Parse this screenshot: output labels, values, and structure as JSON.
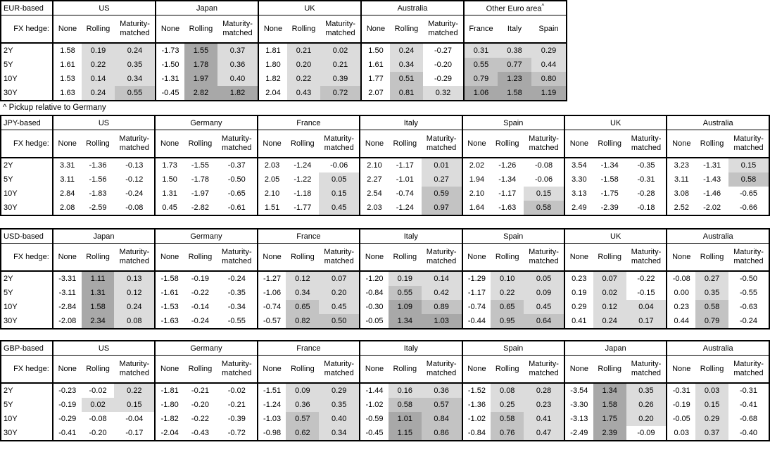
{
  "note": "^ Pickup relative to Germany",
  "fx_hedge_label": "FX hedge:",
  "tenors": [
    "2Y",
    "5Y",
    "10Y",
    "30Y"
  ],
  "hedge_columns": [
    "None",
    "Rolling",
    "Maturity-matched"
  ],
  "shade_colors": {
    "light": "#dcdcdc",
    "medium": "#c3c3c3",
    "dark": "#a8a8a8"
  },
  "shade_rule": "hedged columns only: 0<v<0.5 light, 0.5<=v<=1.0 medium, v>1.0 dark",
  "tables": [
    {
      "base_label": "EUR-based",
      "groups": [
        {
          "name": "US",
          "cols": [
            "None",
            "Rolling",
            "Maturity-matched"
          ],
          "shaded": [
            false,
            true,
            true
          ],
          "rows": [
            [
              "1.58",
              "0.19",
              "0.24"
            ],
            [
              "1.61",
              "0.22",
              "0.35"
            ],
            [
              "1.53",
              "0.14",
              "0.34"
            ],
            [
              "1.63",
              "0.24",
              "0.55"
            ]
          ]
        },
        {
          "name": "Japan",
          "cols": [
            "None",
            "Rolling",
            "Maturity-matched"
          ],
          "shaded": [
            false,
            true,
            true
          ],
          "rows": [
            [
              "-1.73",
              "1.55",
              "0.37"
            ],
            [
              "-1.50",
              "1.78",
              "0.36"
            ],
            [
              "-1.31",
              "1.97",
              "0.40"
            ],
            [
              "-0.45",
              "2.82",
              "1.82"
            ]
          ]
        },
        {
          "name": "UK",
          "cols": [
            "None",
            "Rolling",
            "Maturity-matched"
          ],
          "shaded": [
            false,
            true,
            true
          ],
          "rows": [
            [
              "1.81",
              "0.21",
              "0.02"
            ],
            [
              "1.80",
              "0.20",
              "0.21"
            ],
            [
              "1.82",
              "0.22",
              "0.39"
            ],
            [
              "2.04",
              "0.43",
              "0.72"
            ]
          ]
        },
        {
          "name": "Australia",
          "cols": [
            "None",
            "Rolling",
            "Maturity-matched"
          ],
          "shaded": [
            false,
            true,
            true
          ],
          "rows": [
            [
              "1.50",
              "0.24",
              "-0.27"
            ],
            [
              "1.61",
              "0.34",
              "-0.20"
            ],
            [
              "1.77",
              "0.51",
              "-0.29"
            ],
            [
              "2.07",
              "0.81",
              "0.32"
            ]
          ]
        },
        {
          "name": "Other Euro area",
          "sup": "^",
          "equal_cols": true,
          "cols": [
            "France",
            "Italy",
            "Spain"
          ],
          "shaded": [
            true,
            true,
            true
          ],
          "rows": [
            [
              "0.31",
              "0.38",
              "0.29"
            ],
            [
              "0.55",
              "0.77",
              "0.44"
            ],
            [
              "0.79",
              "1.23",
              "0.80"
            ],
            [
              "1.06",
              "1.58",
              "1.19"
            ]
          ]
        }
      ]
    },
    {
      "base_label": "JPY-based",
      "groups": [
        {
          "name": "US",
          "cols": [
            "None",
            "Rolling",
            "Maturity-matched"
          ],
          "shaded": [
            false,
            true,
            true
          ],
          "rows": [
            [
              "3.31",
              "-1.36",
              "-0.13"
            ],
            [
              "3.11",
              "-1.56",
              "-0.12"
            ],
            [
              "2.84",
              "-1.83",
              "-0.24"
            ],
            [
              "2.08",
              "-2.59",
              "-0.08"
            ]
          ]
        },
        {
          "name": "Germany",
          "cols": [
            "None",
            "Rolling",
            "Maturity-matched"
          ],
          "shaded": [
            false,
            true,
            true
          ],
          "rows": [
            [
              "1.73",
              "-1.55",
              "-0.37"
            ],
            [
              "1.50",
              "-1.78",
              "-0.50"
            ],
            [
              "1.31",
              "-1.97",
              "-0.65"
            ],
            [
              "0.45",
              "-2.82",
              "-0.61"
            ]
          ]
        },
        {
          "name": "France",
          "cols": [
            "None",
            "Rolling",
            "Maturity-matched"
          ],
          "shaded": [
            false,
            true,
            true
          ],
          "rows": [
            [
              "2.03",
              "-1.24",
              "-0.06"
            ],
            [
              "2.05",
              "-1.22",
              "0.05"
            ],
            [
              "2.10",
              "-1.18",
              "0.15"
            ],
            [
              "1.51",
              "-1.77",
              "0.45"
            ]
          ]
        },
        {
          "name": "Italy",
          "cols": [
            "None",
            "Rolling",
            "Maturity-matched"
          ],
          "shaded": [
            false,
            true,
            true
          ],
          "rows": [
            [
              "2.10",
              "-1.17",
              "0.01"
            ],
            [
              "2.27",
              "-1.01",
              "0.27"
            ],
            [
              "2.54",
              "-0.74",
              "0.59"
            ],
            [
              "2.03",
              "-1.24",
              "0.97"
            ]
          ]
        },
        {
          "name": "Spain",
          "cols": [
            "None",
            "Rolling",
            "Maturity-matched"
          ],
          "shaded": [
            false,
            true,
            true
          ],
          "rows": [
            [
              "2.02",
              "-1.26",
              "-0.08"
            ],
            [
              "1.94",
              "-1.34",
              "-0.06"
            ],
            [
              "2.10",
              "-1.17",
              "0.15"
            ],
            [
              "1.64",
              "-1.63",
              "0.58"
            ]
          ]
        },
        {
          "name": "UK",
          "cols": [
            "None",
            "Rolling",
            "Maturity-matched"
          ],
          "shaded": [
            false,
            true,
            true
          ],
          "rows": [
            [
              "3.54",
              "-1.34",
              "-0.35"
            ],
            [
              "3.30",
              "-1.58",
              "-0.31"
            ],
            [
              "3.13",
              "-1.75",
              "-0.28"
            ],
            [
              "2.49",
              "-2.39",
              "-0.18"
            ]
          ]
        },
        {
          "name": "Australia",
          "cols": [
            "None",
            "Rolling",
            "Maturity-matched"
          ],
          "shaded": [
            false,
            true,
            true
          ],
          "rows": [
            [
              "3.23",
              "-1.31",
              "0.15"
            ],
            [
              "3.11",
              "-1.43",
              "0.58"
            ],
            [
              "3.08",
              "-1.46",
              "-0.65"
            ],
            [
              "2.52",
              "-2.02",
              "-0.66"
            ]
          ]
        }
      ]
    },
    {
      "base_label": "USD-based",
      "groups": [
        {
          "name": "Japan",
          "cols": [
            "None",
            "Rolling",
            "Maturity-matched"
          ],
          "shaded": [
            false,
            true,
            true
          ],
          "rows": [
            [
              "-3.31",
              "1.11",
              "0.13"
            ],
            [
              "-3.11",
              "1.31",
              "0.12"
            ],
            [
              "-2.84",
              "1.58",
              "0.24"
            ],
            [
              "-2.08",
              "2.34",
              "0.08"
            ]
          ]
        },
        {
          "name": "Germany",
          "cols": [
            "None",
            "Rolling",
            "Maturity-matched"
          ],
          "shaded": [
            false,
            true,
            true
          ],
          "rows": [
            [
              "-1.58",
              "-0.19",
              "-0.24"
            ],
            [
              "-1.61",
              "-0.22",
              "-0.35"
            ],
            [
              "-1.53",
              "-0.14",
              "-0.34"
            ],
            [
              "-1.63",
              "-0.24",
              "-0.55"
            ]
          ]
        },
        {
          "name": "France",
          "cols": [
            "None",
            "Rolling",
            "Maturity-matched"
          ],
          "shaded": [
            false,
            true,
            true
          ],
          "rows": [
            [
              "-1.27",
              "0.12",
              "0.07"
            ],
            [
              "-1.06",
              "0.34",
              "0.20"
            ],
            [
              "-0.74",
              "0.65",
              "0.45"
            ],
            [
              "-0.57",
              "0.82",
              "0.50"
            ]
          ]
        },
        {
          "name": "Italy",
          "cols": [
            "None",
            "Rolling",
            "Maturity-matched"
          ],
          "shaded": [
            false,
            true,
            true
          ],
          "rows": [
            [
              "-1.20",
              "0.19",
              "0.14"
            ],
            [
              "-0.84",
              "0.55",
              "0.42"
            ],
            [
              "-0.30",
              "1.09",
              "0.89"
            ],
            [
              "-0.05",
              "1.34",
              "1.03"
            ]
          ]
        },
        {
          "name": "Spain",
          "cols": [
            "None",
            "Rolling",
            "Maturity-matched"
          ],
          "shaded": [
            false,
            true,
            true
          ],
          "rows": [
            [
              "-1.29",
              "0.10",
              "0.05"
            ],
            [
              "-1.17",
              "0.22",
              "0.09"
            ],
            [
              "-0.74",
              "0.65",
              "0.45"
            ],
            [
              "-0.44",
              "0.95",
              "0.64"
            ]
          ]
        },
        {
          "name": "UK",
          "cols": [
            "None",
            "Rolling",
            "Maturity-matched"
          ],
          "shaded": [
            false,
            true,
            true
          ],
          "rows": [
            [
              "0.23",
              "0.07",
              "-0.22"
            ],
            [
              "0.19",
              "0.02",
              "-0.15"
            ],
            [
              "0.29",
              "0.12",
              "0.04"
            ],
            [
              "0.41",
              "0.24",
              "0.17"
            ]
          ]
        },
        {
          "name": "Australia",
          "cols": [
            "None",
            "Rolling",
            "Maturity-matched"
          ],
          "shaded": [
            false,
            true,
            true
          ],
          "rows": [
            [
              "-0.08",
              "0.27",
              "-0.50"
            ],
            [
              "0.00",
              "0.35",
              "-0.55"
            ],
            [
              "0.23",
              "0.58",
              "-0.63"
            ],
            [
              "0.44",
              "0.79",
              "-0.24"
            ]
          ]
        }
      ]
    },
    {
      "base_label": "GBP-based",
      "groups": [
        {
          "name": "US",
          "cols": [
            "None",
            "Rolling",
            "Maturity-matched"
          ],
          "shaded": [
            false,
            true,
            true
          ],
          "rows": [
            [
              "-0.23",
              "-0.02",
              "0.22"
            ],
            [
              "-0.19",
              "0.02",
              "0.15"
            ],
            [
              "-0.29",
              "-0.08",
              "-0.04"
            ],
            [
              "-0.41",
              "-0.20",
              "-0.17"
            ]
          ]
        },
        {
          "name": "Germany",
          "cols": [
            "None",
            "Rolling",
            "Maturity-matched"
          ],
          "shaded": [
            false,
            true,
            true
          ],
          "rows": [
            [
              "-1.81",
              "-0.21",
              "-0.02"
            ],
            [
              "-1.80",
              "-0.20",
              "-0.21"
            ],
            [
              "-1.82",
              "-0.22",
              "-0.39"
            ],
            [
              "-2.04",
              "-0.43",
              "-0.72"
            ]
          ]
        },
        {
          "name": "France",
          "cols": [
            "None",
            "Rolling",
            "Maturity-matched"
          ],
          "shaded": [
            false,
            true,
            true
          ],
          "rows": [
            [
              "-1.51",
              "0.09",
              "0.29"
            ],
            [
              "-1.24",
              "0.36",
              "0.35"
            ],
            [
              "-1.03",
              "0.57",
              "0.40"
            ],
            [
              "-0.98",
              "0.62",
              "0.34"
            ]
          ]
        },
        {
          "name": "Italy",
          "cols": [
            "None",
            "Rolling",
            "Maturity-matched"
          ],
          "shaded": [
            false,
            true,
            true
          ],
          "rows": [
            [
              "-1.44",
              "0.16",
              "0.36"
            ],
            [
              "-1.02",
              "0.58",
              "0.57"
            ],
            [
              "-0.59",
              "1.01",
              "0.84"
            ],
            [
              "-0.45",
              "1.15",
              "0.86"
            ]
          ]
        },
        {
          "name": "Spain",
          "cols": [
            "None",
            "Rolling",
            "Maturity-matched"
          ],
          "shaded": [
            false,
            true,
            true
          ],
          "rows": [
            [
              "-1.52",
              "0.08",
              "0.28"
            ],
            [
              "-1.36",
              "0.25",
              "0.23"
            ],
            [
              "-1.02",
              "0.58",
              "0.41"
            ],
            [
              "-0.84",
              "0.76",
              "0.47"
            ]
          ]
        },
        {
          "name": "Japan",
          "cols": [
            "None",
            "Rolling",
            "Maturity-matched"
          ],
          "shaded": [
            false,
            true,
            true
          ],
          "rows": [
            [
              "-3.54",
              "1.34",
              "0.35"
            ],
            [
              "-3.30",
              "1.58",
              "0.26"
            ],
            [
              "-3.13",
              "1.75",
              "0.20"
            ],
            [
              "-2.49",
              "2.39",
              "-0.09"
            ]
          ]
        },
        {
          "name": "Australia",
          "cols": [
            "None",
            "Rolling",
            "Maturity-matched"
          ],
          "shaded": [
            false,
            true,
            true
          ],
          "rows": [
            [
              "-0.31",
              "0.03",
              "-0.31"
            ],
            [
              "-0.19",
              "0.15",
              "-0.41"
            ],
            [
              "-0.05",
              "0.29",
              "-0.68"
            ],
            [
              "0.03",
              "0.37",
              "-0.40"
            ]
          ]
        }
      ]
    }
  ]
}
